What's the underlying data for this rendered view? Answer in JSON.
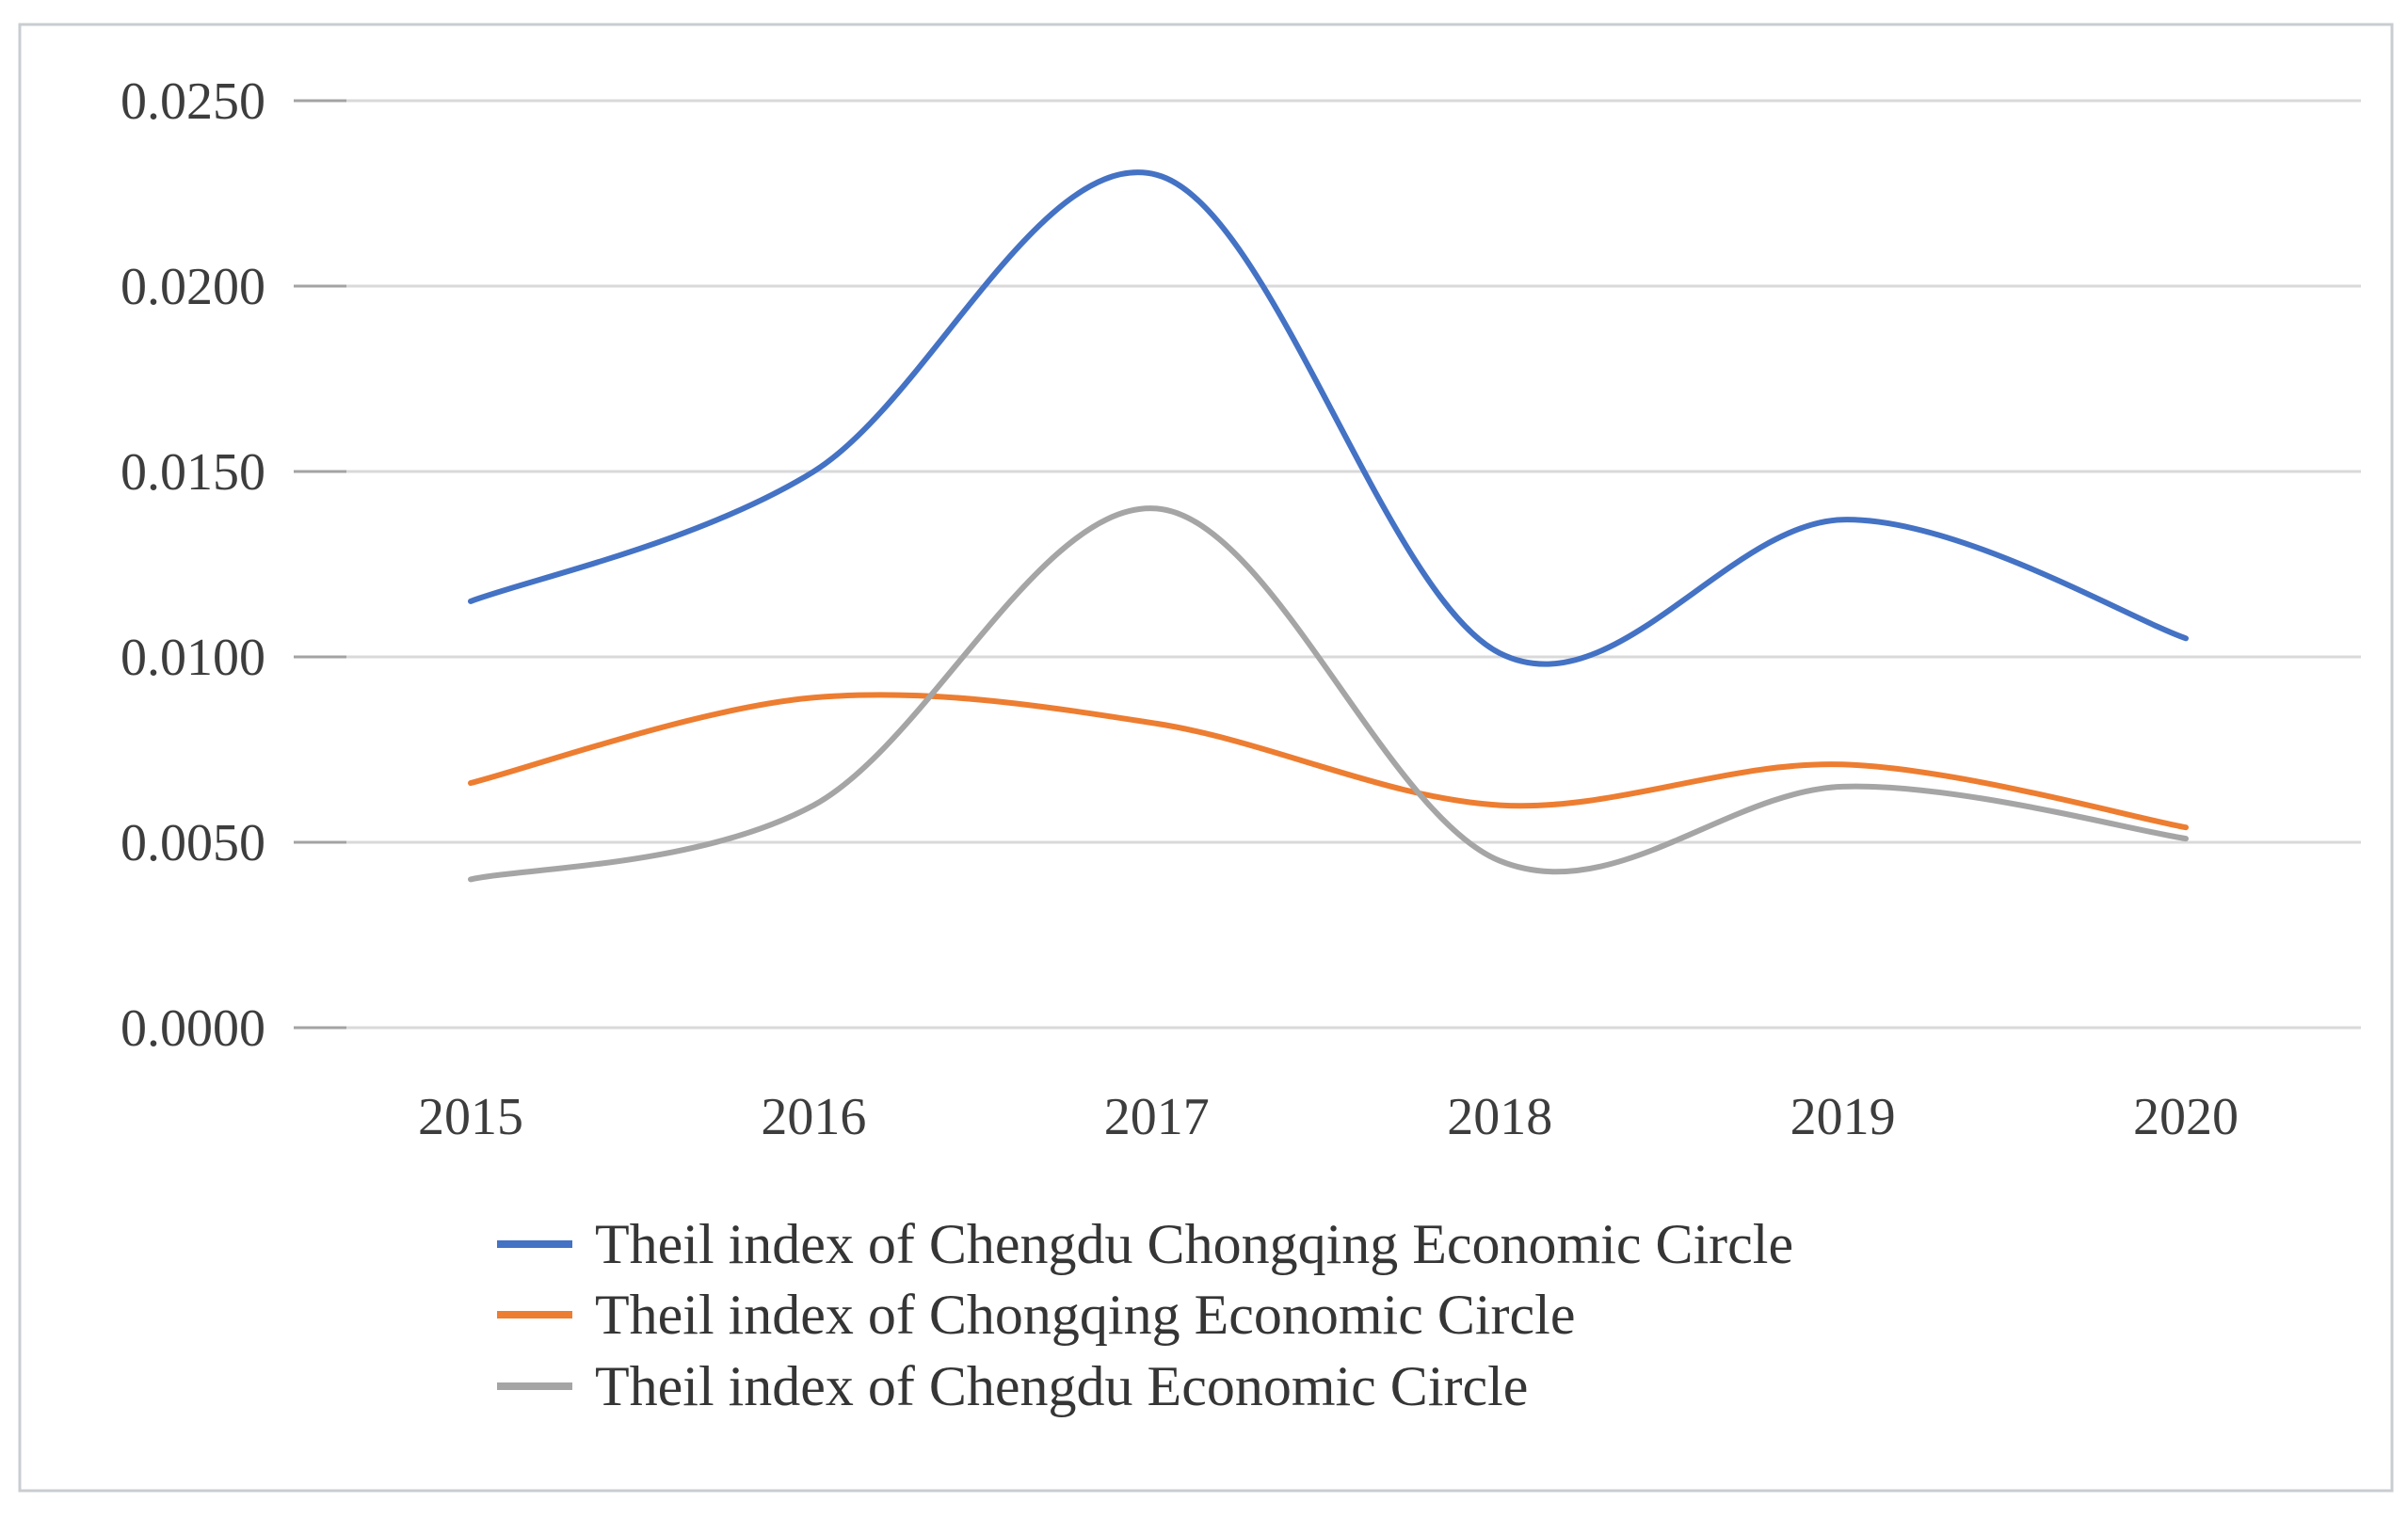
{
  "figure": {
    "background_color": "#ffffff",
    "border_color": "#c9cdd1"
  },
  "chart_data": {
    "type": "line",
    "smooth": true,
    "grid": true,
    "legend_position": "bottom-left",
    "categories": [
      "2015",
      "2016",
      "2017",
      "2018",
      "2019",
      "2020"
    ],
    "y_axis": {
      "ticks": [
        "0.0250",
        "0.0200",
        "0.0150",
        "0.0100",
        "0.0050",
        "0.0000"
      ],
      "tick_values": [
        0.025,
        0.02,
        0.015,
        0.01,
        0.005,
        0.0
      ],
      "min": 0.0,
      "max": 0.025
    },
    "series": [
      {
        "name": "Theil index of Chengdu Chongqing Economic Circle",
        "color": "#4472C4",
        "values": [
          0.0115,
          0.015,
          0.023,
          0.0101,
          0.0137,
          0.0105
        ]
      },
      {
        "name": "Theil index of Chongqing Economic Circle",
        "color": "#ED7D31",
        "values": [
          0.0066,
          0.0089,
          0.0082,
          0.006,
          0.0071,
          0.0054
        ]
      },
      {
        "name": "Theil index of Chengdu Economic Circle",
        "color": "#A5A5A5",
        "values": [
          0.004,
          0.006,
          0.014,
          0.0045,
          0.0065,
          0.0051
        ]
      }
    ],
    "gridline_color": "#d9d9d9",
    "tick_mark_color": "#a3a3a3",
    "axis_text_color": "#3d3d3d"
  }
}
